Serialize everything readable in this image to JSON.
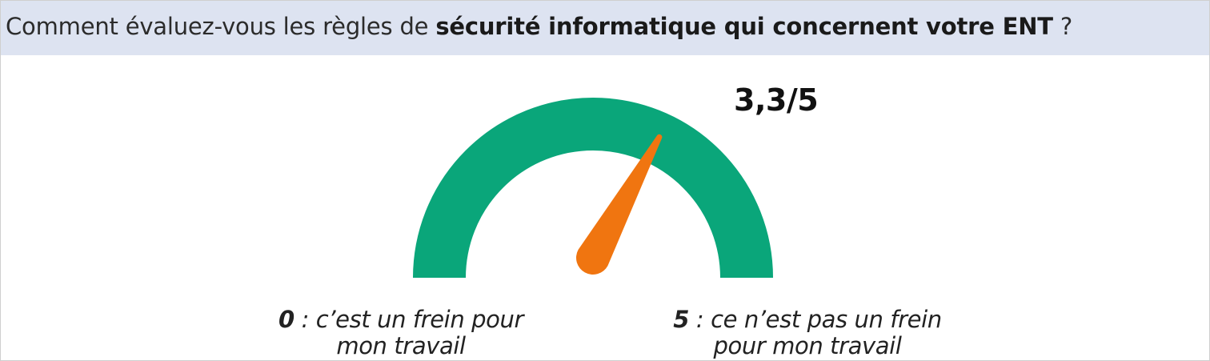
{
  "question": {
    "prefix": "Comment évaluez-vous les règles de ",
    "bold": "sécurité informatique qui concernent votre ENT",
    "suffix": " ?"
  },
  "score_label": "3,3/5",
  "captions": {
    "min_number": "0",
    "min_text_line1": " : c’est un frein pour",
    "min_text_line2": "mon travail",
    "max_number": "5",
    "max_text_line1": " : ce n’est pas un frein",
    "max_text_line2": "pour mon travail"
  },
  "colors": {
    "arc": "#0aa67a",
    "needle": "#f07510",
    "banner_background": "#dde3f1"
  },
  "chart_data": {
    "type": "gauge",
    "value": 3.3,
    "min": 0,
    "max": 5,
    "title": "Comment évaluez-vous les règles de sécurité informatique qui concernent votre ENT ?",
    "value_label": "3,3/5",
    "min_label": "0 : c’est un frein pour mon travail",
    "max_label": "5 : ce n’est pas un frein pour mon travail"
  }
}
